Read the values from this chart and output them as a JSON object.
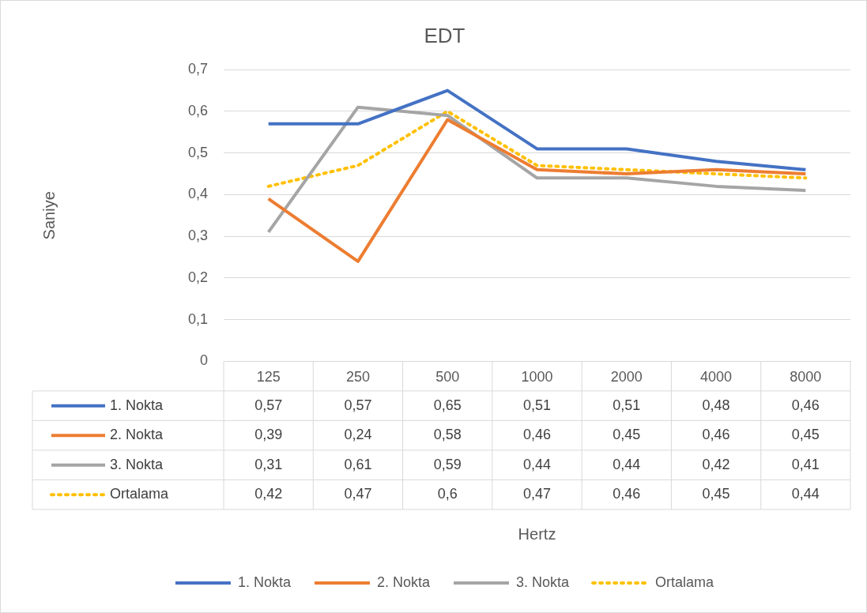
{
  "chart_data": {
    "type": "line",
    "title": "EDT",
    "annotations": [
      "Hertz",
      "Saniye"
    ],
    "categories": [
      "125",
      "250",
      "500",
      "1000",
      "2000",
      "4000",
      "8000"
    ],
    "series": [
      {
        "name": "1. Nokta",
        "color": "#4472c4",
        "values": [
          0.57,
          0.57,
          0.65,
          0.51,
          0.51,
          0.48,
          0.46
        ],
        "value_labels": [
          "0,57",
          "0,57",
          "0,65",
          "0,51",
          "0,51",
          "0,48",
          "0,46"
        ]
      },
      {
        "name": "2. Nokta",
        "color": "#ed7d31",
        "values": [
          0.39,
          0.24,
          0.58,
          0.46,
          0.45,
          0.46,
          0.45
        ],
        "value_labels": [
          "0,39",
          "0,24",
          "0,58",
          "0,46",
          "0,45",
          "0,46",
          "0,45"
        ]
      },
      {
        "name": "3. Nokta",
        "color": "#a5a5a5",
        "values": [
          0.31,
          0.61,
          0.59,
          0.44,
          0.44,
          0.42,
          0.41
        ],
        "value_labels": [
          "0,31",
          "0,61",
          "0,59",
          "0,44",
          "0,44",
          "0,42",
          "0,41"
        ]
      },
      {
        "name": "Ortalama",
        "color": "#ffc000",
        "line_style": "dotted",
        "values": [
          0.42,
          0.47,
          0.6,
          0.47,
          0.46,
          0.45,
          0.44
        ],
        "value_labels": [
          "0,42",
          "0,47",
          "0,6",
          "0,47",
          "0,46",
          "0,45",
          "0,44"
        ]
      }
    ],
    "ylim": [
      0,
      0.7
    ],
    "yticks": [
      {
        "value": 0,
        "label": "0"
      },
      {
        "value": 0.1,
        "label": "0,1"
      },
      {
        "value": 0.2,
        "label": "0,2"
      },
      {
        "value": 0.3,
        "label": "0,3"
      },
      {
        "value": 0.4,
        "label": "0,4"
      },
      {
        "value": 0.5,
        "label": "0,5"
      },
      {
        "value": 0.6,
        "label": "0,6"
      },
      {
        "value": 0.7,
        "label": "0,7"
      }
    ],
    "grid": "y",
    "legend": "bottom",
    "marker": "none",
    "line_style": "solid"
  }
}
